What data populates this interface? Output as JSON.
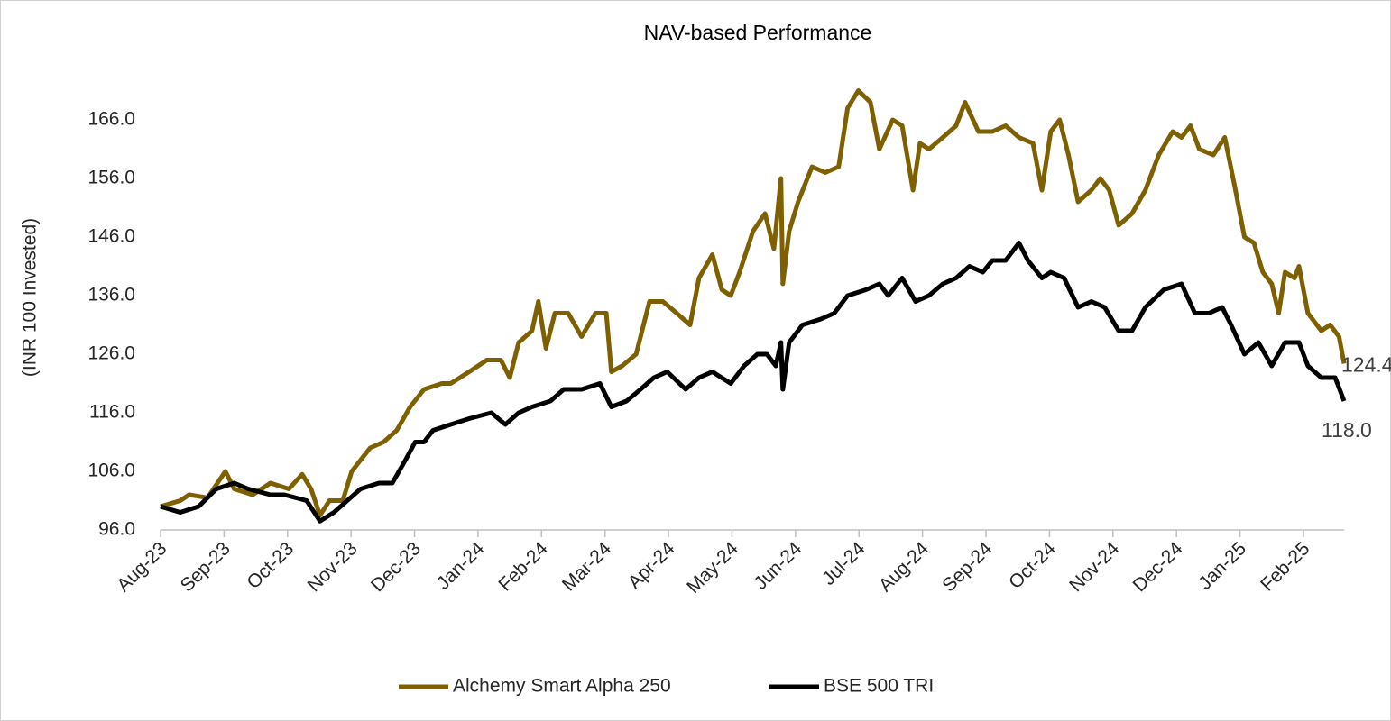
{
  "chart_data": {
    "type": "line",
    "title": "NAV-based Performance",
    "y_label": "(INR 100 Invested)",
    "xlim": [
      0,
      18.64
    ],
    "xticks": [
      {
        "value": 0,
        "label": "Aug-23"
      },
      {
        "value": 1,
        "label": "Sep-23"
      },
      {
        "value": 2,
        "label": "Oct-23"
      },
      {
        "value": 3,
        "label": "Nov-23"
      },
      {
        "value": 4,
        "label": "Dec-23"
      },
      {
        "value": 5,
        "label": "Jan-24"
      },
      {
        "value": 6,
        "label": "Feb-24"
      },
      {
        "value": 7,
        "label": "Mar-24"
      },
      {
        "value": 8,
        "label": "Apr-24"
      },
      {
        "value": 9,
        "label": "May-24"
      },
      {
        "value": 10,
        "label": "Jun-24"
      },
      {
        "value": 11,
        "label": "Jul-24"
      },
      {
        "value": 12,
        "label": "Aug-24"
      },
      {
        "value": 13,
        "label": "Sep-24"
      },
      {
        "value": 14,
        "label": "Oct-24"
      },
      {
        "value": 15,
        "label": "Nov-24"
      },
      {
        "value": 16,
        "label": "Dec-24"
      },
      {
        "value": 17,
        "label": "Jan-25"
      },
      {
        "value": 18,
        "label": "Feb-25"
      }
    ],
    "ylim": [
      96,
      172
    ],
    "yticks": [
      {
        "value": 96,
        "label": "96.0"
      },
      {
        "value": 106,
        "label": "106.0"
      },
      {
        "value": 116,
        "label": "116.0"
      },
      {
        "value": 126,
        "label": "126.0"
      },
      {
        "value": 136,
        "label": "136.0"
      },
      {
        "value": 146,
        "label": "146.0"
      },
      {
        "value": 156,
        "label": "156.0"
      },
      {
        "value": 166,
        "label": "166.0"
      }
    ],
    "legend": "bottom",
    "series": [
      {
        "name": "Alchemy Smart Alpha 250",
        "color": "#7f6000",
        "end_label": "124.4",
        "x": [
          0,
          0.31,
          0.45,
          0.74,
          1.02,
          1.16,
          1.45,
          1.73,
          2.02,
          2.23,
          2.37,
          2.51,
          2.66,
          2.87,
          3.01,
          3.3,
          3.51,
          3.72,
          3.93,
          4.15,
          4.43,
          4.57,
          4.86,
          5.14,
          5.36,
          5.5,
          5.64,
          5.85,
          5.95,
          6.07,
          6.21,
          6.42,
          6.63,
          6.85,
          7.02,
          7.1,
          7.27,
          7.49,
          7.7,
          7.91,
          8.13,
          8.34,
          8.48,
          8.69,
          8.84,
          8.98,
          9.12,
          9.33,
          9.52,
          9.66,
          9.77,
          9.8,
          9.9,
          10.04,
          10.26,
          10.47,
          10.68,
          10.82,
          10.99,
          11.18,
          11.32,
          11.53,
          11.68,
          11.85,
          11.96,
          12.1,
          12.32,
          12.53,
          12.67,
          12.88,
          13.1,
          13.31,
          13.52,
          13.74,
          13.88,
          14.02,
          14.16,
          14.3,
          14.45,
          14.66,
          14.8,
          14.94,
          15.09,
          15.3,
          15.51,
          15.72,
          15.94,
          16.08,
          16.22,
          16.36,
          16.58,
          16.76,
          16.93,
          17.07,
          17.22,
          17.36,
          17.5,
          17.61,
          17.71,
          17.86,
          17.93,
          18.07,
          18.28,
          18.42,
          18.56,
          18.64
        ],
        "values": [
          100,
          101,
          102,
          101.5,
          106,
          103,
          102,
          104,
          103,
          105.5,
          103,
          98.5,
          101,
          101,
          106,
          110,
          111,
          113,
          117,
          120,
          121,
          121,
          123,
          125,
          125,
          122,
          128,
          130,
          135,
          127,
          133,
          133,
          129,
          133,
          133,
          123,
          124,
          126,
          135,
          135,
          133,
          131,
          139,
          143,
          137,
          136,
          140,
          147,
          150,
          144,
          156,
          138,
          147,
          152,
          158,
          157,
          158,
          168,
          171,
          169,
          161,
          166,
          165,
          154,
          162,
          161,
          163,
          165,
          169,
          164,
          164,
          165,
          163,
          162,
          154,
          164,
          166,
          160,
          152,
          154,
          156,
          154,
          148,
          150,
          154,
          160,
          164,
          163,
          165,
          161,
          160,
          163,
          154,
          146,
          145,
          140,
          138,
          133,
          140,
          139,
          141,
          133,
          130,
          131,
          129,
          124.4
        ]
      },
      {
        "name": "BSE 500 TRI",
        "color": "#000000",
        "end_label": "118.0",
        "x": [
          0,
          0.31,
          0.6,
          0.88,
          1.16,
          1.38,
          1.73,
          1.95,
          2.3,
          2.51,
          2.73,
          2.94,
          3.15,
          3.44,
          3.65,
          3.86,
          4.01,
          4.15,
          4.29,
          4.57,
          4.86,
          5.21,
          5.43,
          5.64,
          5.85,
          6.14,
          6.35,
          6.63,
          6.92,
          7.1,
          7.34,
          7.56,
          7.77,
          7.98,
          8.27,
          8.48,
          8.69,
          8.98,
          9.19,
          9.4,
          9.55,
          9.69,
          9.77,
          9.8,
          9.9,
          10.11,
          10.4,
          10.61,
          10.82,
          11.11,
          11.32,
          11.46,
          11.68,
          11.89,
          12.1,
          12.32,
          12.53,
          12.74,
          12.95,
          13.1,
          13.31,
          13.52,
          13.66,
          13.88,
          14.02,
          14.23,
          14.45,
          14.66,
          14.87,
          15.09,
          15.3,
          15.51,
          15.8,
          16.08,
          16.29,
          16.51,
          16.72,
          16.86,
          17.07,
          17.29,
          17.5,
          17.71,
          17.93,
          18.07,
          18.28,
          18.5,
          18.64
        ],
        "values": [
          100,
          99,
          100,
          103,
          104,
          103,
          102,
          102,
          101,
          97.5,
          99,
          101,
          103,
          104,
          104,
          108,
          111,
          111,
          113,
          114,
          115,
          116,
          114,
          116,
          117,
          118,
          120,
          120,
          121,
          117,
          118,
          120,
          122,
          123,
          120,
          122,
          123,
          121,
          124,
          126,
          126,
          124,
          128,
          120,
          128,
          131,
          132,
          133,
          136,
          137,
          138,
          136,
          139,
          135,
          136,
          138,
          139,
          141,
          140,
          142,
          142,
          145,
          142,
          139,
          140,
          139,
          134,
          135,
          134,
          130,
          130,
          134,
          137,
          138,
          133,
          133,
          134,
          131,
          126,
          128,
          124,
          128,
          128,
          124,
          122,
          122,
          118
        ]
      }
    ]
  }
}
